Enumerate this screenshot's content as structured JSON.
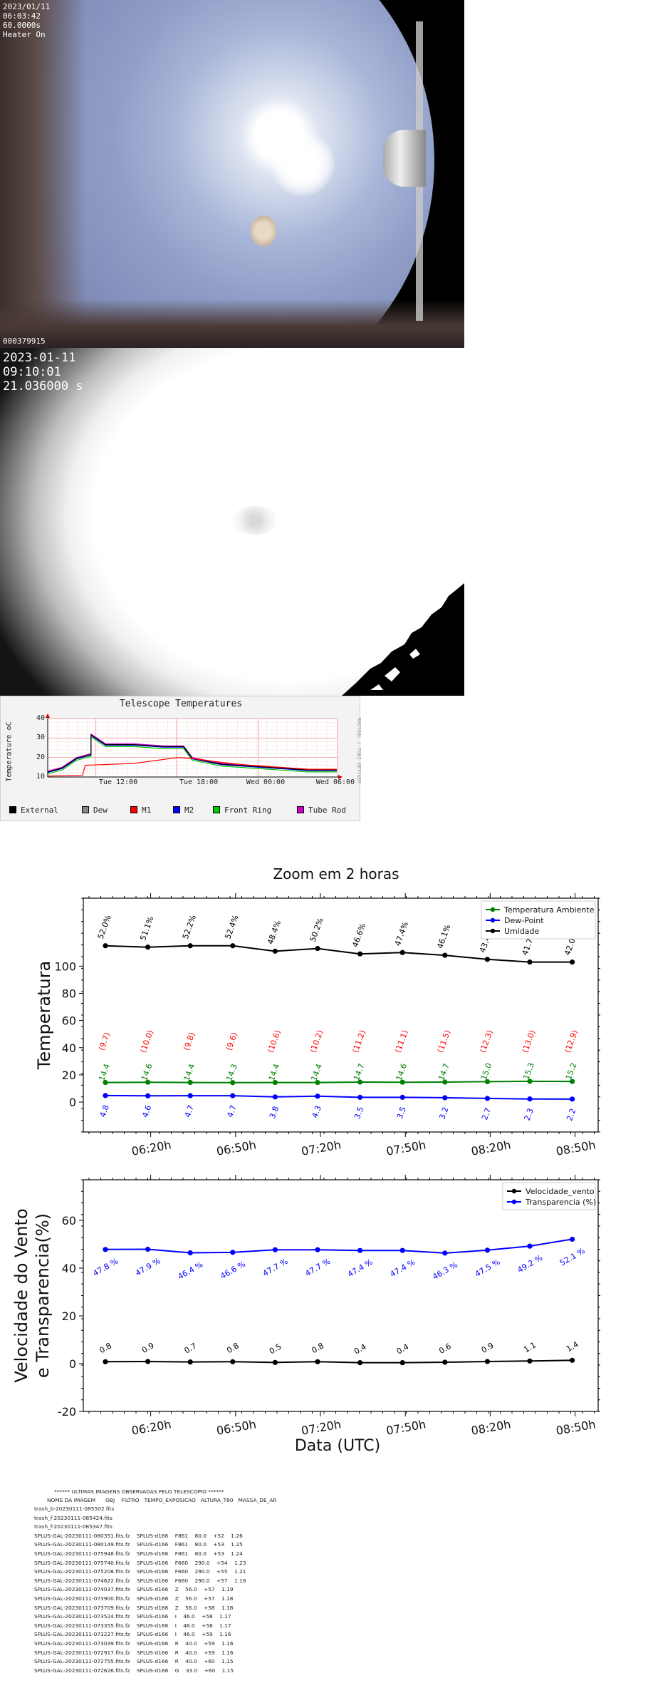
{
  "allsky_camera": {
    "lines": [
      "2023/01/11",
      "06:03:42",
      "60.0000s",
      "Heater On"
    ],
    "frame_id": "000379915"
  },
  "thermal_camera": {
    "lines": [
      "2023-01-11",
      "09:10:01",
      "21.036000 s"
    ]
  },
  "telescope_temperatures": {
    "title": "Telescope Temperatures",
    "ylabel": "Temperature oC",
    "side_label": "RRDTOOL / TOBI OETIKER",
    "y_ticks": [
      "40",
      "30",
      "20",
      "10"
    ],
    "x_ticks": [
      "Tue 12:00",
      "Tue 18:00",
      "Wed 00:00",
      "Wed 06:00"
    ],
    "legend": [
      {
        "label": "External",
        "color": "#000000"
      },
      {
        "label": "Dew",
        "color": "#888888"
      },
      {
        "label": "M1",
        "color": "#ff0000"
      },
      {
        "label": "M2",
        "color": "#0000ff"
      },
      {
        "label": "Front Ring",
        "color": "#00cc00"
      },
      {
        "label": "Tube Rod",
        "color": "#cc00cc"
      }
    ]
  },
  "weather_charts": {
    "title": "Zoom em 2 horas",
    "x_ticks": [
      "06:20h",
      "06:50h",
      "07:20h",
      "07:50h",
      "08:20h",
      "08:50h"
    ],
    "xlabel": "Data (UTC)"
  },
  "chart_data": [
    {
      "type": "line",
      "title": "Zoom em 2 horas",
      "ylabel": "Temperatura",
      "xlabel": "",
      "ylim": [
        -22,
        150
      ],
      "y_ticks": [
        0,
        20,
        40,
        60,
        80,
        100
      ],
      "x": [
        "06:05",
        "06:20",
        "06:35",
        "06:50",
        "07:05",
        "07:20",
        "07:35",
        "07:50",
        "08:05",
        "08:20",
        "08:35",
        "08:50"
      ],
      "legend_position": "top-right",
      "series": [
        {
          "name": "Temperatura Ambiente",
          "color": "#008000",
          "values": [
            14.4,
            14.6,
            14.4,
            14.3,
            14.4,
            14.4,
            14.7,
            14.6,
            14.7,
            15.0,
            15.3,
            15.2
          ],
          "labels": [
            "14.4",
            "14.6",
            "14.4",
            "14.3",
            "14.4",
            "14.4",
            "14.7",
            "14.6",
            "14.7",
            "15.0",
            "15.3",
            "15.2"
          ]
        },
        {
          "name": "Dew-Point",
          "color": "#0000ff",
          "values": [
            4.8,
            4.6,
            4.7,
            4.7,
            3.8,
            4.3,
            3.5,
            3.5,
            3.2,
            2.7,
            2.3,
            2.2
          ],
          "labels": [
            "4.8",
            "4.6",
            "4.7",
            "4.7",
            "3.8",
            "4.3",
            "3.5",
            "3.5",
            "3.2",
            "2.7",
            "2.3",
            "2.2"
          ]
        },
        {
          "name": "Umidade",
          "color": "#000000",
          "values": [
            115,
            114,
            115,
            115,
            111,
            113,
            109,
            110,
            108,
            105,
            103,
            103
          ],
          "labels": [
            "52.0%",
            "51.1%",
            "52.2%",
            "52.4%",
            "48.4%",
            "50.2%",
            "46.6%",
            "47.4%",
            "46.1%",
            "43.4%",
            "41.7%",
            "42.0%"
          ]
        }
      ],
      "annotations": {
        "color": "#ff0000",
        "labels": [
          "(9.7)",
          "(10.0)",
          "(9.8)",
          "(9.6)",
          "(10.6)",
          "(10.2)",
          "(11.2)",
          "(11.1)",
          "(11.5)",
          "(12.3)",
          "(13.0)",
          "(12.9)"
        ]
      }
    },
    {
      "type": "line",
      "title": "",
      "ylabel": "Velocidade do Vento\ne Transparencia(%)",
      "xlabel": "Data (UTC)",
      "ylim": [
        -20,
        77
      ],
      "y_ticks": [
        -20,
        0,
        20,
        40,
        60
      ],
      "x": [
        "06:05",
        "06:20",
        "06:35",
        "06:50",
        "07:05",
        "07:20",
        "07:35",
        "07:50",
        "08:05",
        "08:20",
        "08:35",
        "08:50"
      ],
      "legend_position": "top-right",
      "series": [
        {
          "name": "Velocidade_vento",
          "color": "#000000",
          "values": [
            0.8,
            0.9,
            0.7,
            0.8,
            0.5,
            0.8,
            0.4,
            0.4,
            0.6,
            0.9,
            1.1,
            1.4
          ],
          "labels": [
            "0.8",
            "0.9",
            "0.7",
            "0.8",
            "0.5",
            "0.8",
            "0.4",
            "0.4",
            "0.6",
            "0.9",
            "1.1",
            "1.4"
          ]
        },
        {
          "name": "Transparencia (%)",
          "color": "#0000ff",
          "values": [
            47.8,
            47.9,
            46.4,
            46.6,
            47.7,
            47.7,
            47.4,
            47.4,
            46.3,
            47.5,
            49.2,
            52.1
          ],
          "labels": [
            "47.8 %",
            "47.9 %",
            "46.4 %",
            "46.6 %",
            "47.7 %",
            "47.7 %",
            "47.4 %",
            "47.4 %",
            "46.3 %",
            "47.5 %",
            "49.2 %",
            "52.1 %"
          ]
        }
      ]
    }
  ],
  "observed_images": {
    "title": "****** ULTIMAS IMAGENS OBSERVADAS PELO TELESCOPIO ******",
    "header": "NOME DA IMAGEM      OBJ    FILTRO   TEMPO_EXPOSICAO   ALTURA_T80   MASSA_DE_AR",
    "rows": [
      "trash_b-20230111-085502.fits",
      "trash_f-20230111-085424.fits",
      "trash_f-20230111-085347.fits",
      "SPLUS-GAL-20230111-080351.fits.fz    SPLUS-d166    F861    80.0    +52    1.26",
      "SPLUS-GAL-20230111-080149.fits.fz    SPLUS-d166    F861    80.0    +53    1.25",
      "SPLUS-GAL-20230111-075948.fits.fz    SPLUS-d166    F861    80.0    +53    1.24",
      "SPLUS-GAL-20230111-075740.fits.fz    SPLUS-d166    F660    290.0    +54    1.23",
      "SPLUS-GAL-20230111-075208.fits.fz    SPLUS-d166    F660    290.0    +55    1.21",
      "SPLUS-GAL-20230111-074622.fits.fz    SPLUS-d166    F660    290.0    +57    1.19",
      "SPLUS-GAL-20230111-074037.fits.fz    SPLUS-d166    Z    56.0    +57    1.19",
      "SPLUS-GAL-20230111-073900.fits.fz    SPLUS-d166    Z    56.0    +57    1.18",
      "SPLUS-GAL-20230111-073709.fits.fz    SPLUS-d166    Z    56.0    +58    1.18",
      "SPLUS-GAL-20230111-073524.fits.fz    SPLUS-d166    I    46.0    +58    1.17",
      "SPLUS-GAL-20230111-073355.fits.fz    SPLUS-d166    I    46.0    +58    1.17",
      "SPLUS-GAL-20230111-073227.fits.fz    SPLUS-d166    I    46.0    +59    1.16",
      "SPLUS-GAL-20230111-073039.fits.fz    SPLUS-d166    R    40.0    +59    1.16",
      "SPLUS-GAL-20230111-072917.fits.fz    SPLUS-d166    R    40.0    +59    1.16",
      "SPLUS-GAL-20230111-072755.fits.fz    SPLUS-d166    R    40.0    +60    1.15",
      "SPLUS-GAL-20230111-072626.fits.fz    SPLUS-d166    G    33.0    +60    1.15"
    ]
  }
}
